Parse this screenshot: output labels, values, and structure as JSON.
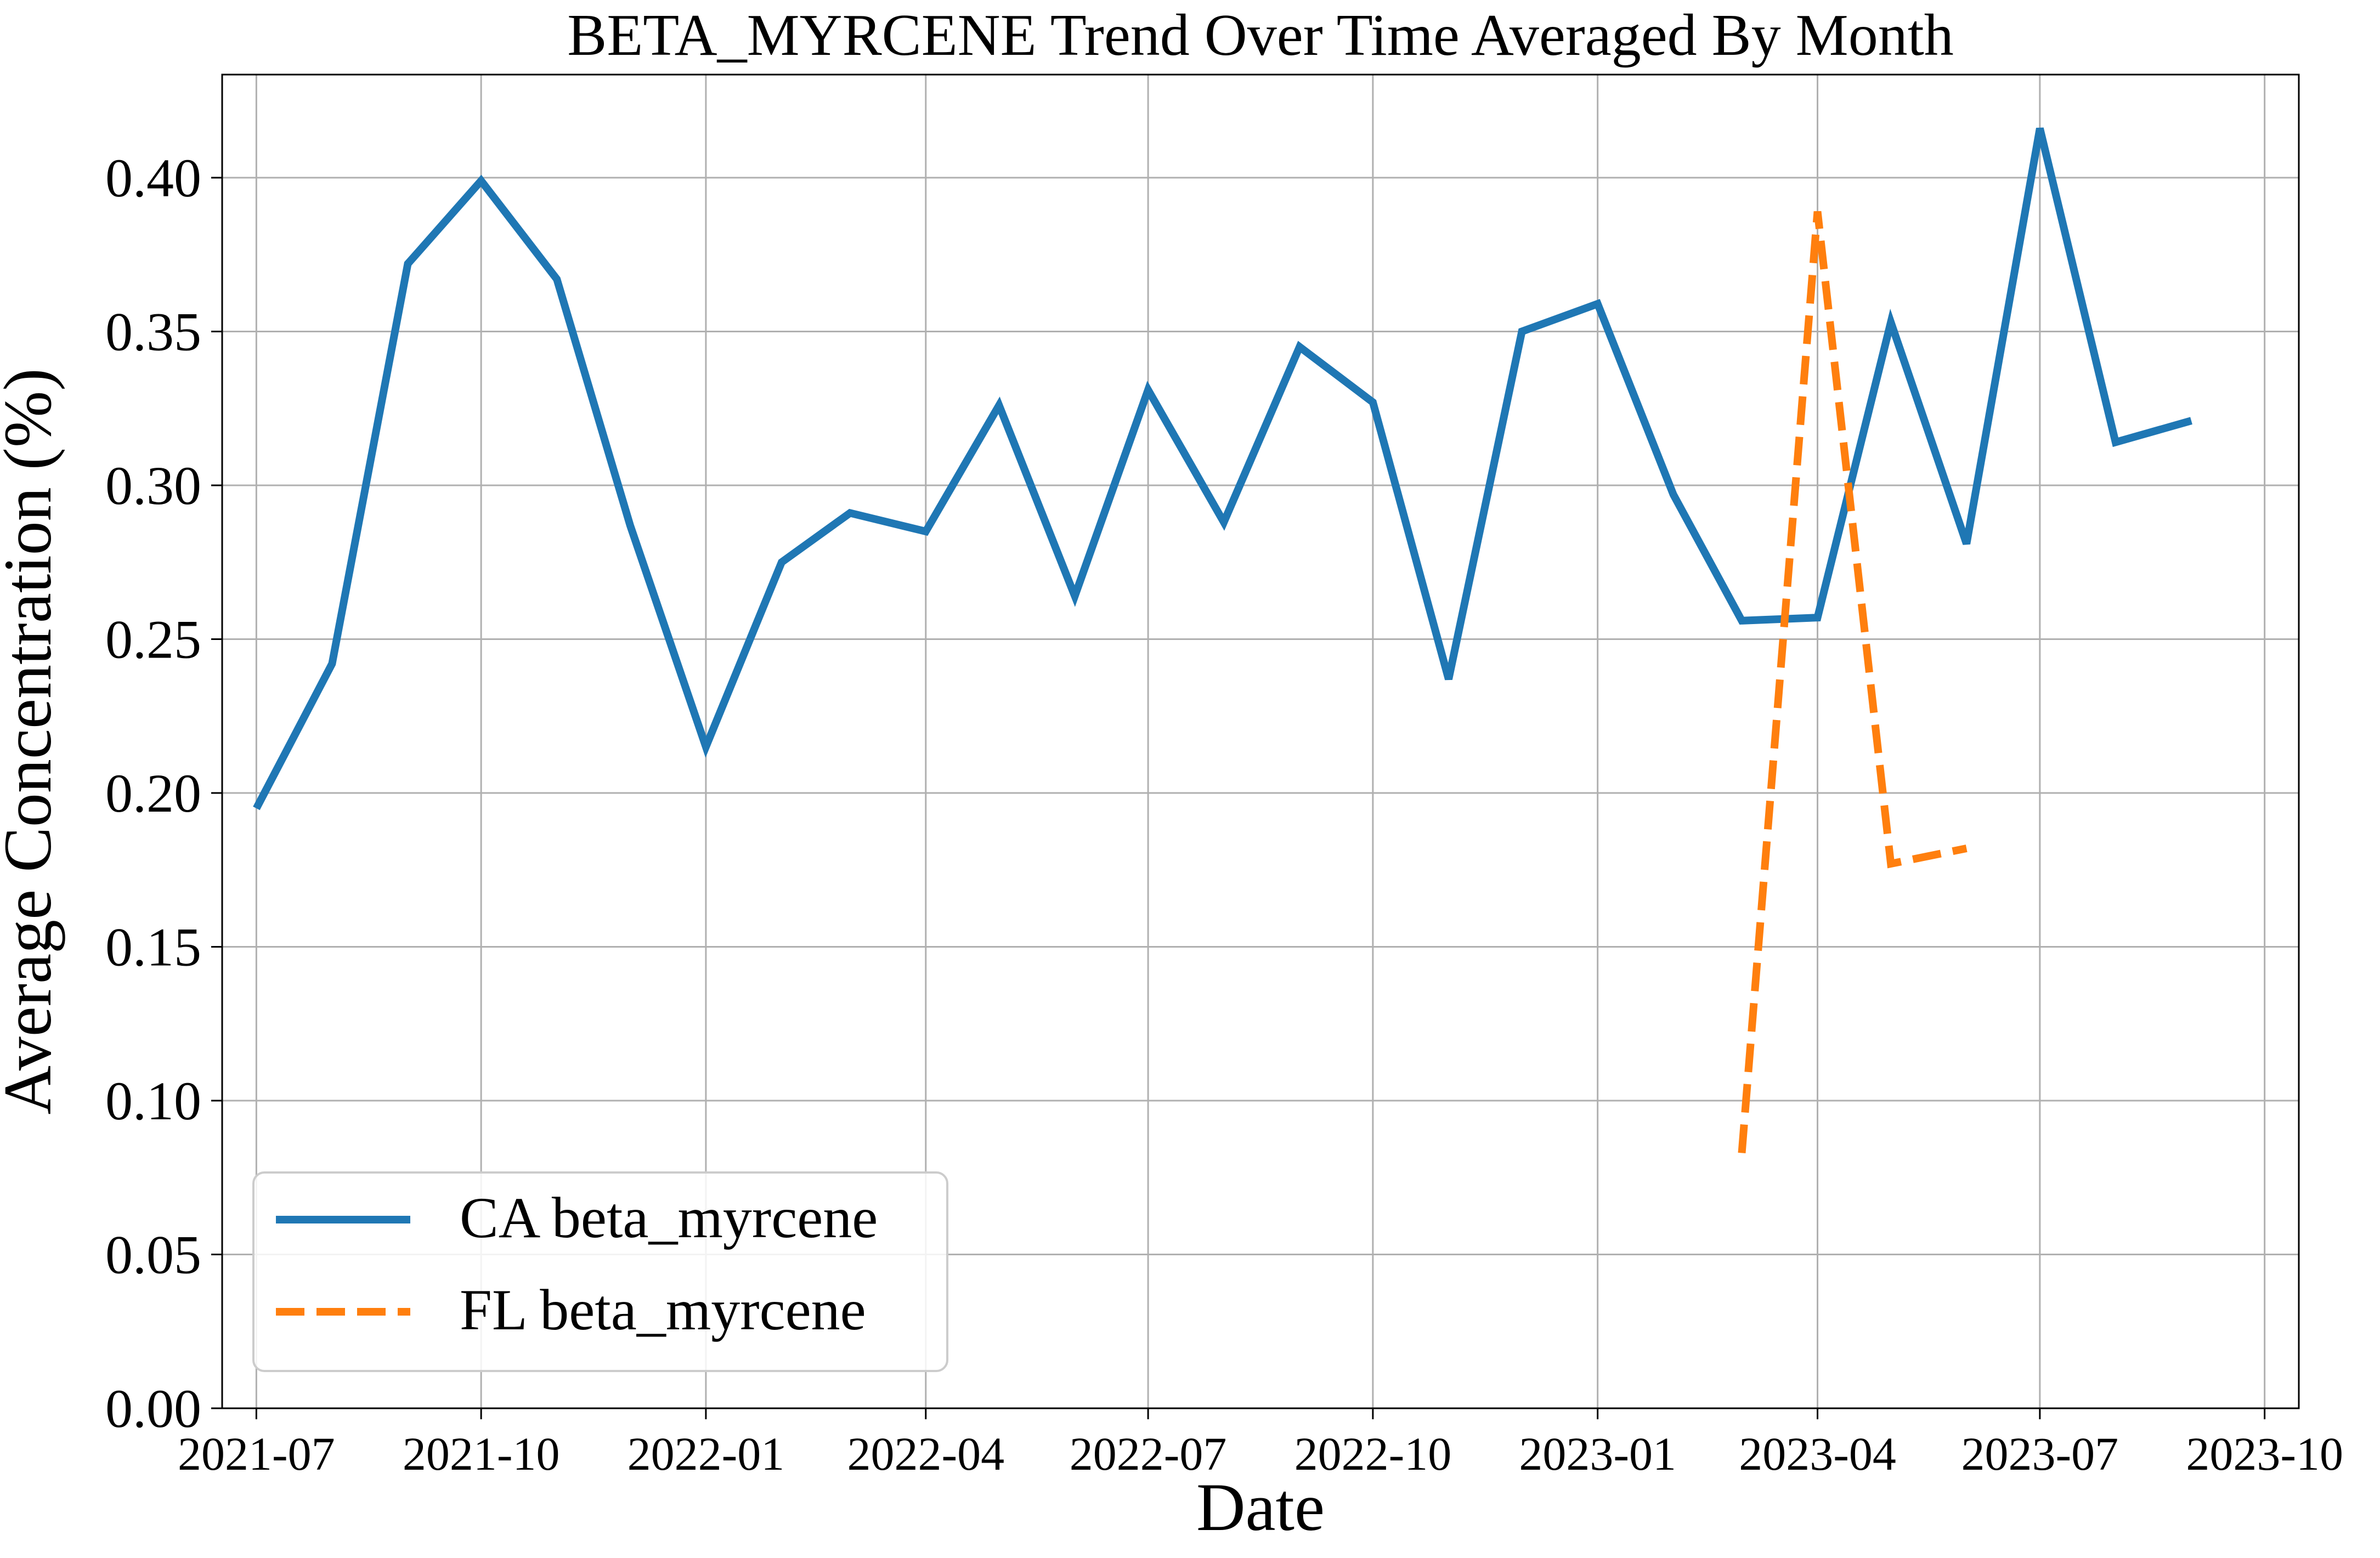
{
  "chart_data": {
    "type": "line",
    "title": "BETA_MYRCENE Trend Over Time Averaged By Month",
    "xlabel": "Date",
    "ylabel": "Average Concentration (%)",
    "x_ticks": [
      "2021-07",
      "2021-10",
      "2022-01",
      "2022-04",
      "2022-07",
      "2022-10",
      "2023-01",
      "2023-04",
      "2023-07",
      "2023-10"
    ],
    "y_ticks": [
      "0.00",
      "0.05",
      "0.10",
      "0.15",
      "0.20",
      "0.25",
      "0.30",
      "0.35",
      "0.40"
    ],
    "xlim": [
      "2021-06-17",
      "2023-10-15"
    ],
    "ylim": [
      0,
      0.4335
    ],
    "grid": true,
    "legend_position": "lower-left",
    "series": [
      {
        "name": "CA beta_myrcene",
        "color": "#1f77b4",
        "style": "solid",
        "x": [
          "2021-07-01",
          "2021-08-01",
          "2021-09-01",
          "2021-10-01",
          "2021-11-01",
          "2021-12-01",
          "2022-01-01",
          "2022-02-01",
          "2022-03-01",
          "2022-04-01",
          "2022-05-01",
          "2022-06-01",
          "2022-07-01",
          "2022-08-01",
          "2022-09-01",
          "2022-10-01",
          "2022-11-01",
          "2022-12-01",
          "2023-01-01",
          "2023-02-01",
          "2023-03-01",
          "2023-04-01",
          "2023-05-01",
          "2023-06-01",
          "2023-07-01",
          "2023-08-01",
          "2023-09-01"
        ],
        "values": [
          0.195,
          0.242,
          0.372,
          0.399,
          0.367,
          0.287,
          0.215,
          0.275,
          0.291,
          0.285,
          0.326,
          0.264,
          0.331,
          0.288,
          0.345,
          0.327,
          0.237,
          0.35,
          0.359,
          0.297,
          0.256,
          0.257,
          0.353,
          0.281,
          0.416,
          0.314,
          0.321
        ]
      },
      {
        "name": "FL beta_myrcene",
        "color": "#ff7f0e",
        "style": "dashed",
        "x": [
          "2023-03-01",
          "2023-04-01",
          "2023-05-01",
          "2023-06-01"
        ],
        "values": [
          0.083,
          0.389,
          0.177,
          0.182
        ]
      }
    ]
  }
}
